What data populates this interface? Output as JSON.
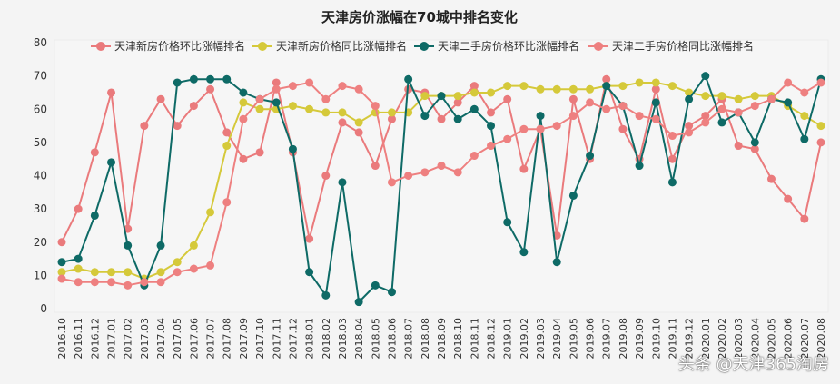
{
  "chart_data": {
    "type": "line",
    "title": "天津房价涨幅在70城中排名变化",
    "ylim": [
      0,
      80
    ],
    "yticks": [
      0,
      10,
      20,
      30,
      40,
      50,
      60,
      70,
      80
    ],
    "grid": false,
    "legend": "top",
    "categories": [
      "2016.10",
      "2016.11",
      "2016.12",
      "2017.01",
      "2017.02",
      "2017.03",
      "2017.04",
      "2017.05",
      "2017.06",
      "2017.07",
      "2017.08",
      "2017.09",
      "2017.10",
      "2017.11",
      "2017.12",
      "2018.01",
      "2018.02",
      "2018.03",
      "2018.04",
      "2018.05",
      "2018.06",
      "2018.07",
      "2018.08",
      "2018.09",
      "2018.10",
      "2018.11",
      "2018.12",
      "2019.01",
      "2019.02",
      "2019.03",
      "2019.04",
      "2019.05",
      "2019.06",
      "2019.07",
      "2019.08",
      "2019.09",
      "2019.10",
      "2019.11",
      "2019.12",
      "2020.01",
      "2020.02",
      "2020.03",
      "2020.04",
      "2020.05",
      "2020.06",
      "2020.07",
      "2020.08"
    ],
    "series": [
      {
        "name": "天津新房价格环比涨幅排名",
        "color": "#ea7a7c",
        "values": [
          20,
          30,
          47,
          65,
          24,
          55,
          63,
          55,
          61,
          66,
          53,
          45,
          47,
          68,
          47,
          21,
          40,
          56,
          53,
          43,
          57,
          66,
          65,
          57,
          62,
          67,
          59,
          63,
          42,
          54,
          22,
          63,
          45,
          69,
          54,
          45,
          66,
          45,
          55,
          58,
          63,
          49,
          48,
          39,
          33,
          27,
          50
        ]
      },
      {
        "name": "天津新房价格同比涨幅排名",
        "color": "#d5c93a",
        "values": [
          11,
          12,
          11,
          11,
          11,
          9,
          11,
          14,
          19,
          29,
          49,
          62,
          60,
          60,
          61,
          60,
          59,
          59,
          56,
          59,
          59,
          59,
          64,
          64,
          64,
          65,
          65,
          67,
          67,
          66,
          66,
          66,
          66,
          67,
          67,
          68,
          68,
          67,
          65,
          64,
          64,
          63,
          64,
          64,
          61,
          58,
          55
        ]
      },
      {
        "name": "天津二手房价格环比涨幅排名",
        "color": "#0e6a66",
        "values": [
          14,
          15,
          28,
          44,
          19,
          7,
          19,
          68,
          69,
          69,
          69,
          65,
          63,
          62,
          48,
          11,
          4,
          38,
          2,
          7,
          5,
          69,
          58,
          64,
          57,
          60,
          55,
          26,
          17,
          58,
          14,
          34,
          46,
          67,
          61,
          43,
          62,
          38,
          63,
          70,
          56,
          59,
          50,
          63,
          62,
          51,
          69
        ]
      },
      {
        "name": "天津二手房价格同比涨幅排名",
        "color": "#ee8080",
        "values": [
          9,
          8,
          8,
          8,
          7,
          8,
          8,
          11,
          12,
          13,
          32,
          57,
          63,
          66,
          67,
          68,
          63,
          67,
          66,
          61,
          38,
          40,
          41,
          43,
          41,
          46,
          49,
          51,
          54,
          54,
          55,
          58,
          62,
          60,
          61,
          58,
          57,
          52,
          53,
          56,
          60,
          59,
          61,
          63,
          68,
          65,
          68
        ]
      }
    ]
  },
  "watermark": "头条 @天津365淘房"
}
